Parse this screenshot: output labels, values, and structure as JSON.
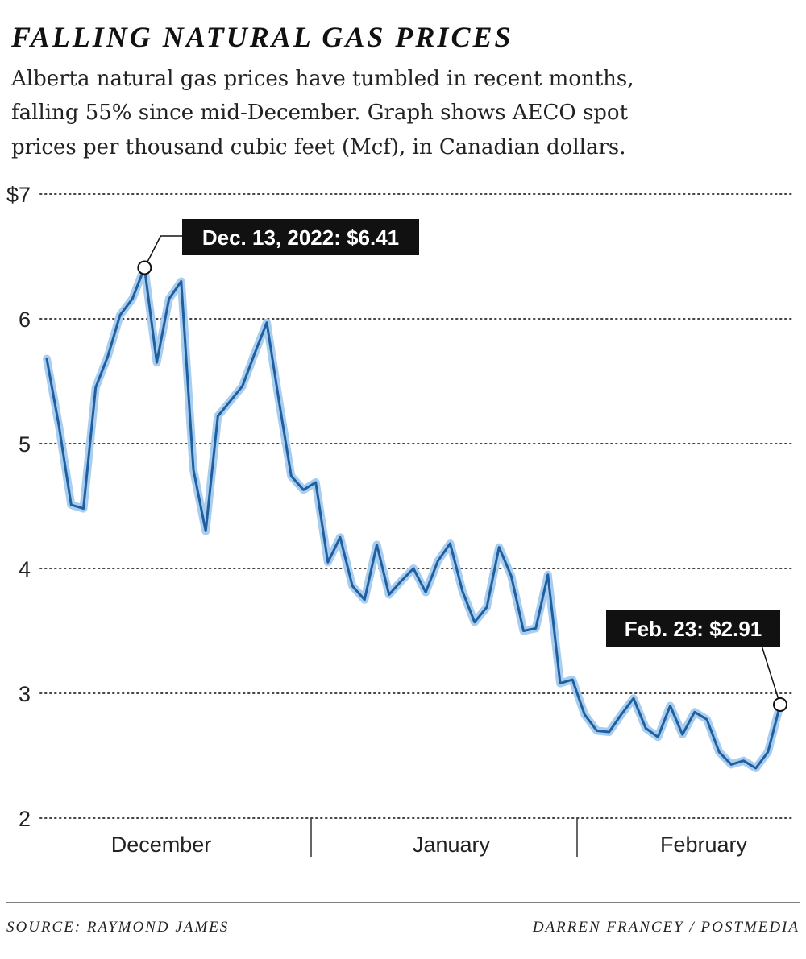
{
  "chart_data": {
    "type": "line",
    "title": "FALLING NATURAL GAS PRICES",
    "subtitle": [
      "Alberta natural gas prices have tumbled in recent months,",
      "falling 55% since mid-December. Graph shows AECO spot",
      "prices per thousand cubic feet (Mcf), in Canadian dollars."
    ],
    "source": "SOURCE: RAYMOND JAMES",
    "credit": "DARREN FRANCEY / POSTMEDIA",
    "months": [
      "December",
      "January",
      "February"
    ],
    "annotations": [
      "Dec. 13, 2022: $6.41",
      "Feb. 23: $2.91"
    ],
    "series": [
      {
        "name": "AECO spot price",
        "color": "#1f5f9f",
        "values": [
          5.68,
          5.14,
          4.51,
          4.48,
          5.45,
          5.7,
          6.03,
          6.16,
          6.41,
          5.65,
          6.16,
          6.3,
          4.79,
          4.3,
          5.22,
          5.34,
          5.46,
          5.72,
          5.97,
          5.34,
          4.74,
          4.63,
          4.69,
          4.05,
          4.25,
          3.86,
          3.75,
          4.19,
          3.79,
          3.9,
          4.0,
          3.81,
          4.06,
          4.2,
          3.82,
          3.57,
          3.69,
          4.17,
          3.94,
          3.5,
          3.52,
          3.95,
          3.08,
          3.11,
          2.83,
          2.7,
          2.69,
          2.83,
          2.96,
          2.72,
          2.65,
          2.9,
          2.67,
          2.85,
          2.79,
          2.53,
          2.43,
          2.46,
          2.4,
          2.53,
          2.91
        ]
      }
    ],
    "ylim": [
      2,
      7
    ],
    "yticks": [
      2,
      3,
      4,
      5,
      6,
      {
        "value": 7,
        "label": "$7"
      }
    ],
    "grid": true
  }
}
